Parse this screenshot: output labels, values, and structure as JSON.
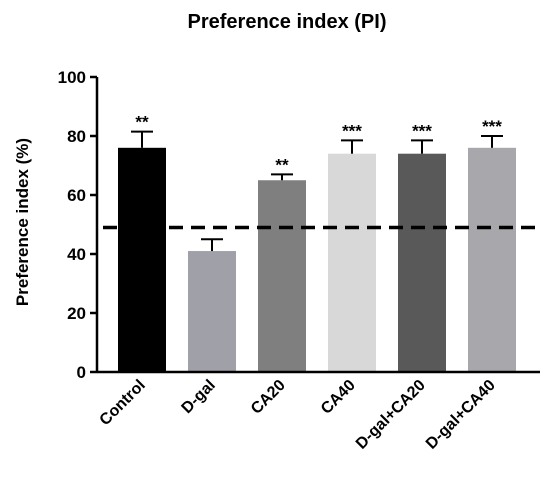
{
  "chart_data": {
    "type": "bar",
    "title": "Preference index (PI)",
    "xlabel": "",
    "ylabel": "Preference index (%)",
    "ylim": [
      0,
      100
    ],
    "yticks": [
      0,
      20,
      40,
      60,
      80,
      100
    ],
    "grid": false,
    "legend": "none",
    "categories": [
      "Control",
      "D-gal",
      "CA20",
      "CA40",
      "D-gal+CA20",
      "D-gal+CA40"
    ],
    "values": [
      76,
      41,
      65,
      74,
      74,
      76
    ],
    "errors": [
      5.5,
      4,
      2,
      4.5,
      4.5,
      4
    ],
    "significance": [
      "**",
      "",
      "**",
      "***",
      "***",
      "***"
    ],
    "colors": [
      "#000000",
      "#a0a0a8",
      "#7f7f7f",
      "#d8d8d8",
      "#595959",
      "#a8a8ac"
    ],
    "reference_line": 49
  }
}
